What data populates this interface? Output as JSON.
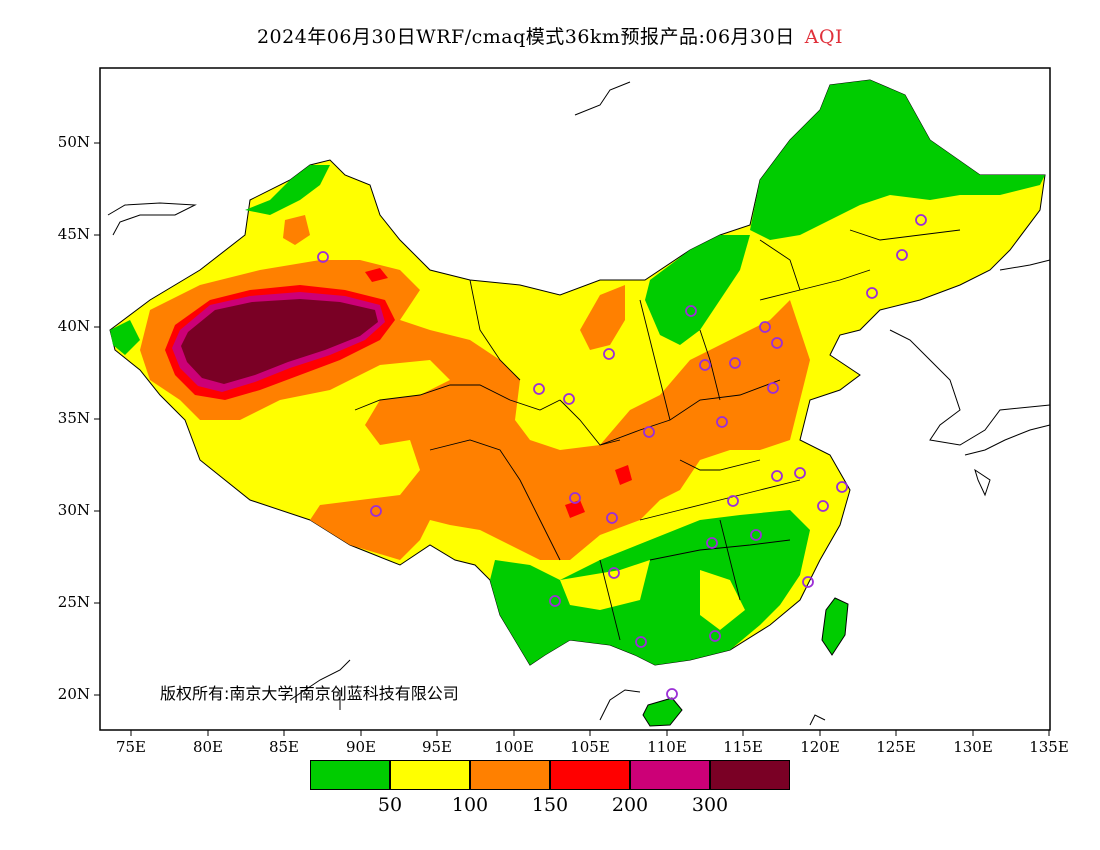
{
  "title": {
    "main": "2024年06月30日WRF/cmaq模式36km预报产品:06月30日",
    "variable": "AQI",
    "variable_color": "#e0303a"
  },
  "axes": {
    "lat_labels": [
      "50N",
      "45N",
      "40N",
      "35N",
      "30N",
      "25N",
      "20N"
    ],
    "lon_labels": [
      "75E",
      "80E",
      "85E",
      "90E",
      "95E",
      "100E",
      "105E",
      "110E",
      "115E",
      "120E",
      "125E",
      "130E",
      "135E"
    ]
  },
  "copyright": "版权所有:南京大学|南京创蓝科技有限公司",
  "legend": {
    "colors": [
      "#00cc00",
      "#ffff00",
      "#ff8000",
      "#ff0000",
      "#cc0077",
      "#7a0025"
    ],
    "labels": [
      "50",
      "100",
      "150",
      "200",
      "300"
    ]
  },
  "map": {
    "land_color": "#ffffff",
    "boundary_color": "#000000",
    "station_marker_color": "#9b2fd6",
    "station_count": 30
  }
}
